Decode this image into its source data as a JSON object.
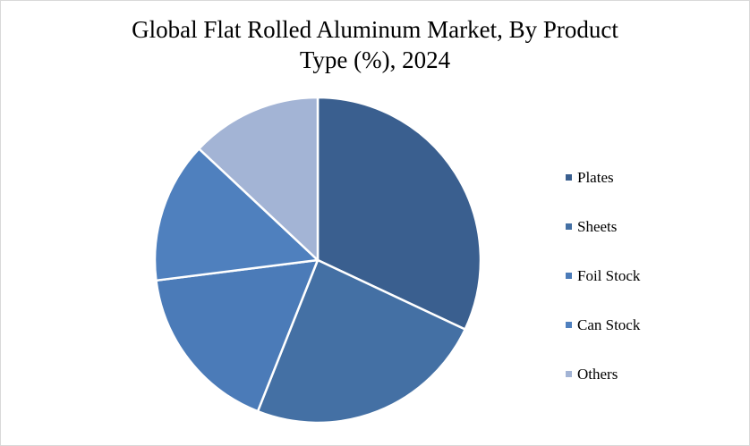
{
  "chart_data": {
    "type": "pie",
    "title_lines": [
      "Global Flat Rolled Aluminum Market, By Product",
      "Type (%), 2024"
    ],
    "categories": [
      "Plates",
      "Sheets",
      "Foil Stock",
      "Can Stock",
      "Others"
    ],
    "values": [
      32,
      24,
      17,
      14,
      13
    ],
    "colors": [
      "#3a5f8f",
      "#4470a4",
      "#4b7bb8",
      "#4f80be",
      "#a3b4d5"
    ],
    "legend_position": "right",
    "start_angle_deg": 0,
    "direction": "clockwise"
  }
}
